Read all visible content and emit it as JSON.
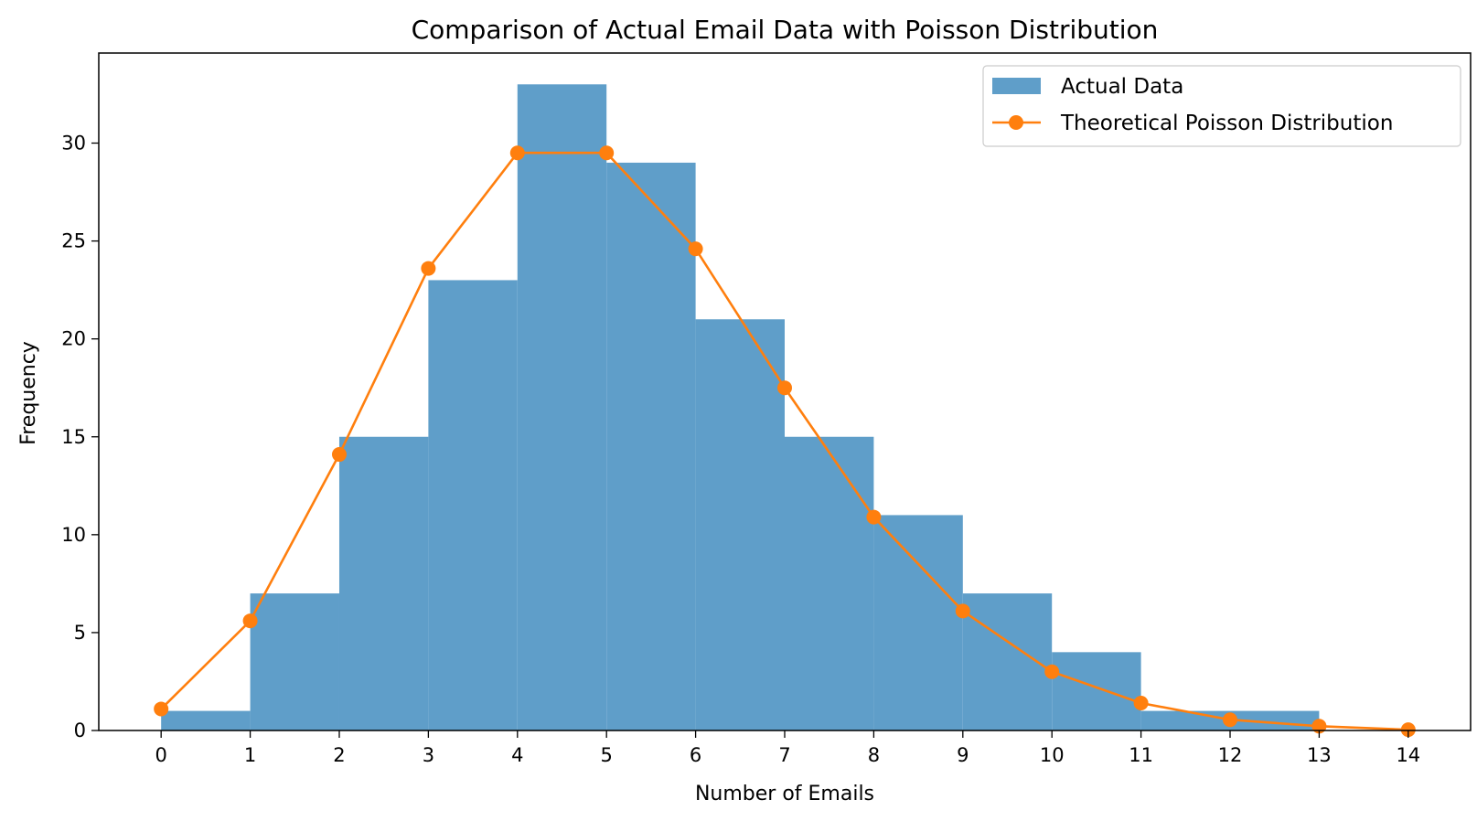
{
  "chart_data": {
    "type": "bar",
    "title": "Comparison of Actual Email Data with Poisson Distribution",
    "xlabel": "Number of Emails",
    "ylabel": "Frequency",
    "xlim": [
      -0.7,
      14.7
    ],
    "ylim": [
      0,
      34.6
    ],
    "xticks": [
      0,
      1,
      2,
      3,
      4,
      5,
      6,
      7,
      8,
      9,
      10,
      11,
      12,
      13,
      14
    ],
    "yticks": [
      0,
      5,
      10,
      15,
      20,
      25,
      30
    ],
    "legend_position": "top-right",
    "grid": false,
    "histogram": {
      "name": "Actual Data",
      "color": "#5f9ec9",
      "bin_edges": [
        0,
        1,
        2,
        3,
        4,
        5,
        6,
        7,
        8,
        9,
        10,
        11,
        12,
        13
      ],
      "counts": [
        1,
        7,
        15,
        23,
        33,
        29,
        21,
        15,
        11,
        7,
        4,
        1,
        1
      ]
    },
    "line": {
      "name": "Theoretical Poisson Distribution",
      "color": "#ff7f0e",
      "x": [
        0,
        1,
        2,
        3,
        4,
        5,
        6,
        7,
        8,
        9,
        10,
        11,
        12,
        13,
        14
      ],
      "y": [
        1.1,
        5.6,
        14.1,
        23.6,
        29.5,
        29.5,
        24.6,
        17.5,
        10.9,
        6.1,
        3.0,
        1.4,
        0.55,
        0.22,
        0.04
      ]
    }
  }
}
